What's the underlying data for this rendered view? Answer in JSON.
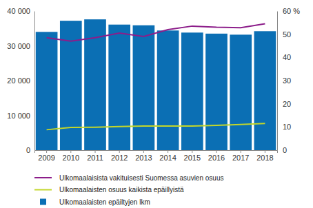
{
  "chart_data": {
    "type": "bar",
    "categories": [
      "2009",
      "2010",
      "2011",
      "2012",
      "2013",
      "2014",
      "2015",
      "2016",
      "2017",
      "2018"
    ],
    "series": [
      {
        "name": "Ulkomaalaisista vakituisesti Suomessa asuvien osuus",
        "type": "line",
        "axis": "y2",
        "color": "#8c1d8a",
        "values": [
          48.5,
          47,
          48.5,
          50.5,
          49,
          52,
          53.5,
          53,
          52.8,
          54.5
        ]
      },
      {
        "name": "Ulkomaalaisten osuus kaikista epäillyistä",
        "type": "line",
        "axis": "y2",
        "color": "#c3d62a",
        "values": [
          8.8,
          9.8,
          9.9,
          10.2,
          10.4,
          10.4,
          10.4,
          10.7,
          11.1,
          11.5
        ]
      },
      {
        "name": "Ulkomaalaisten epäiltyjen lkm",
        "type": "bar",
        "color": "#0b6fb4",
        "values": [
          34000,
          37200,
          37600,
          36100,
          35900,
          34400,
          33800,
          33500,
          33200,
          34200
        ]
      }
    ],
    "ylim": [
      0,
      40000
    ],
    "yticks": [
      0,
      {
        "value": 10000,
        "label": "10 000"
      },
      {
        "value": 20000,
        "label": "20 000"
      },
      {
        "value": 30000,
        "label": "30 000"
      },
      {
        "value": 40000,
        "label": "40 000"
      }
    ],
    "y2lim": [
      0,
      60
    ],
    "y2ticks": [
      0,
      10,
      20,
      30,
      40,
      50,
      {
        "value": 60,
        "label": "60 %"
      }
    ],
    "grid": false
  }
}
